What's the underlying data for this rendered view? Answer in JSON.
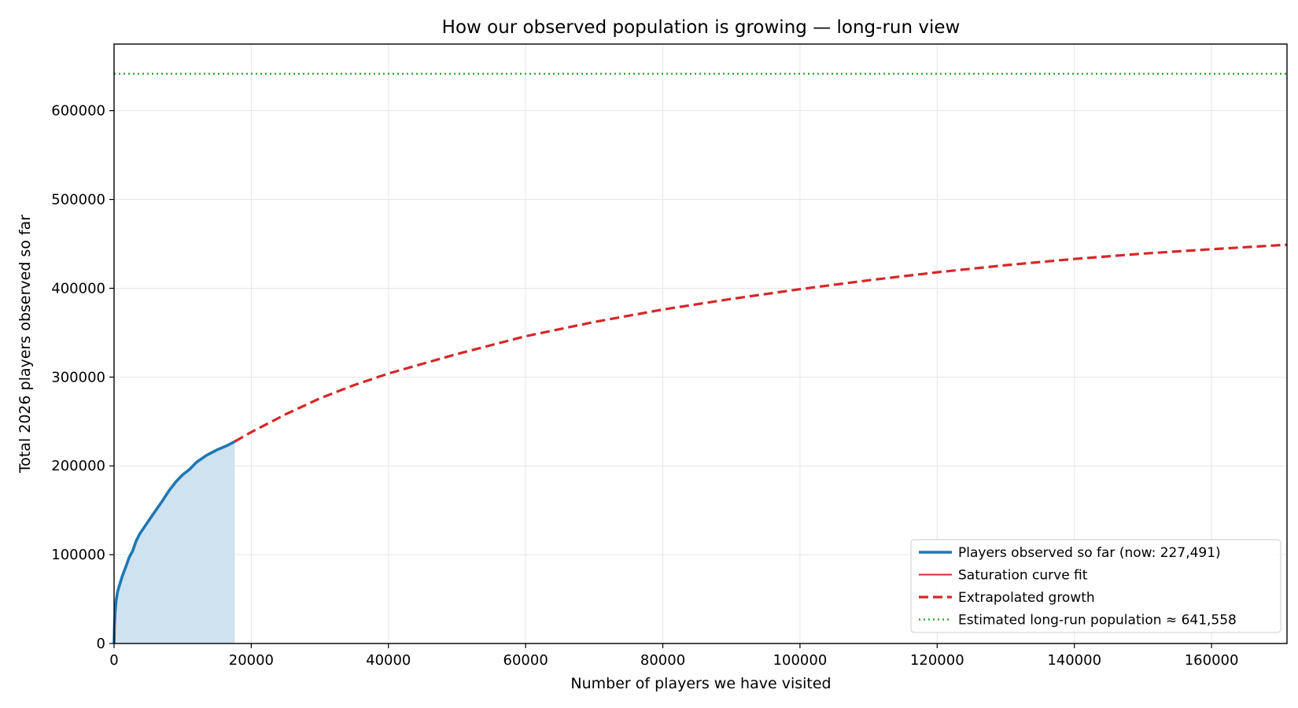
{
  "chart_data": {
    "type": "line",
    "title": "How our observed population is growing  —  long-run view",
    "xlabel": "Number of players we have visited",
    "ylabel": "Total 2026 players observed so far",
    "xlim": [
      0,
      171000
    ],
    "ylim": [
      0,
      675000
    ],
    "x_ticks": [
      0,
      20000,
      40000,
      60000,
      80000,
      100000,
      120000,
      140000,
      160000
    ],
    "y_ticks": [
      0,
      100000,
      200000,
      300000,
      400000,
      500000,
      600000
    ],
    "grid": true,
    "legend_position": "lower-right",
    "colors": {
      "observed": "#1f77b4",
      "observed_fill": "#cfe2ef",
      "fit": "#d62728",
      "extrapolated": "#d62728",
      "long_run": "#2ca02c",
      "grid": "#e6e6e6"
    },
    "legend": [
      {
        "key": "observed",
        "label": "Players observed so far  (now: 227,491)",
        "style": "solid-thick"
      },
      {
        "key": "fit",
        "label": "Saturation curve fit",
        "style": "solid-thin"
      },
      {
        "key": "extrapolated",
        "label": "Extrapolated growth",
        "style": "dashed"
      },
      {
        "key": "long_run",
        "label": "Estimated long-run population  ≈ 641,558",
        "style": "dotted"
      }
    ],
    "series": [
      {
        "name": "Players observed so far  (now: 227,491)",
        "key": "observed",
        "filled": true,
        "points": [
          [
            0,
            0
          ],
          [
            60,
            20000
          ],
          [
            150,
            35000
          ],
          [
            300,
            48000
          ],
          [
            500,
            58000
          ],
          [
            800,
            66000
          ],
          [
            1200,
            76000
          ],
          [
            1700,
            86000
          ],
          [
            2200,
            97000
          ],
          [
            2700,
            104000
          ],
          [
            3200,
            115000
          ],
          [
            3700,
            123000
          ],
          [
            4400,
            131000
          ],
          [
            5200,
            140000
          ],
          [
            6000,
            149000
          ],
          [
            7000,
            160000
          ],
          [
            8000,
            172000
          ],
          [
            9000,
            182000
          ],
          [
            10000,
            190000
          ],
          [
            11000,
            196000
          ],
          [
            12000,
            204000
          ],
          [
            13500,
            212000
          ],
          [
            15000,
            218000
          ],
          [
            16500,
            223000
          ],
          [
            17600,
            227491
          ]
        ]
      },
      {
        "name": "Extrapolated growth",
        "key": "extrapolated",
        "points": [
          [
            17600,
            227491
          ],
          [
            20000,
            238000
          ],
          [
            25000,
            258000
          ],
          [
            30000,
            276000
          ],
          [
            35000,
            291000
          ],
          [
            40000,
            304000
          ],
          [
            50000,
            326000
          ],
          [
            60000,
            346000
          ],
          [
            70000,
            362000
          ],
          [
            80000,
            376000
          ],
          [
            90000,
            388000
          ],
          [
            100000,
            399000
          ],
          [
            110000,
            409000
          ],
          [
            120000,
            418000
          ],
          [
            130000,
            426000
          ],
          [
            140000,
            433000
          ],
          [
            150000,
            439000
          ],
          [
            160000,
            444000
          ],
          [
            171000,
            449000
          ]
        ]
      },
      {
        "name": "Estimated long-run population  ≈ 641,558",
        "key": "long_run",
        "hline": 641558
      }
    ]
  }
}
